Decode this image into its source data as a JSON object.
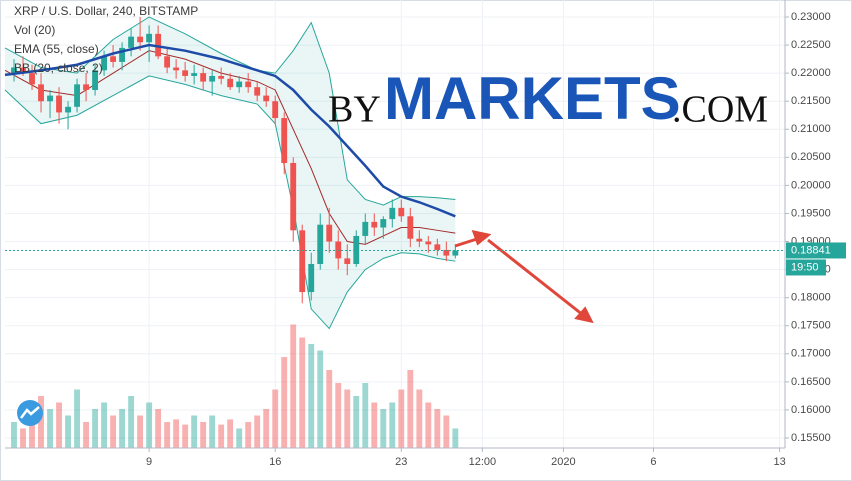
{
  "chart_data": {
    "type": "candlestick",
    "title": "XRP / U.S. Dollar, 240, BITSTAMP",
    "watermark": {
      "prefix": "BY",
      "main": "MARKETS",
      "suffix": ".COM"
    },
    "xlim": [
      1,
      44.3
    ],
    "ylim": [
      0.15322,
      0.23303
    ],
    "xticks": [
      9,
      16,
      23,
      {
        "value": 27.5,
        "label": "12:00"
      },
      {
        "value": 32,
        "label": "2020"
      },
      {
        "value": 37,
        "label": "6"
      },
      {
        "value": 44,
        "label": "13"
      }
    ],
    "yticks": [
      {
        "value": 0.155,
        "label": "0.15500"
      },
      {
        "value": 0.16,
        "label": "0.16000"
      },
      {
        "value": 0.165,
        "label": "0.16500"
      },
      {
        "value": 0.17,
        "label": "0.17000"
      },
      {
        "value": 0.175,
        "label": "0.17500"
      },
      {
        "value": 0.18,
        "label": "0.18000"
      },
      {
        "value": 0.185,
        "label": "0.18500"
      },
      {
        "value": 0.19,
        "label": "0.19000"
      },
      {
        "value": 0.195,
        "label": "0.19500"
      },
      {
        "value": 0.2,
        "label": "0.20000"
      },
      {
        "value": 0.205,
        "label": "0.20500"
      },
      {
        "value": 0.21,
        "label": "0.21000"
      },
      {
        "value": 0.215,
        "label": "0.21500"
      },
      {
        "value": 0.22,
        "label": "0.22000"
      },
      {
        "value": 0.225,
        "label": "0.22500"
      },
      {
        "value": 0.23,
        "label": "0.23000"
      }
    ],
    "grid": true,
    "up_color": "#26a69a",
    "down_color": "#ef5350",
    "last_price": 0.18841,
    "countdown": "19:50",
    "x": [
      1.5,
      2,
      2.5,
      3,
      3.5,
      4,
      4.5,
      5,
      5.5,
      6,
      6.5,
      7,
      7.5,
      8,
      8.5,
      9,
      9.5,
      10,
      10.5,
      11,
      11.5,
      12,
      12.5,
      13,
      13.5,
      14,
      14.5,
      15,
      15.5,
      16,
      16.5,
      17,
      17.5,
      18,
      18.5,
      19,
      19.5,
      20,
      20.5,
      21,
      21.5,
      22,
      22.5,
      23,
      23.5,
      24,
      24.5,
      25,
      25.5,
      26
    ],
    "open": [
      0.22,
      0.221,
      0.22,
      0.218,
      0.215,
      0.216,
      0.213,
      0.214,
      0.218,
      0.217,
      0.2205,
      0.223,
      0.222,
      0.2245,
      0.2265,
      0.2255,
      0.227,
      0.223,
      0.221,
      0.2205,
      0.2195,
      0.22,
      0.2185,
      0.2195,
      0.219,
      0.2175,
      0.2185,
      0.2175,
      0.216,
      0.215,
      0.212,
      0.204,
      0.192,
      0.181,
      0.186,
      0.193,
      0.19,
      0.187,
      0.186,
      0.191,
      0.1935,
      0.1925,
      0.194,
      0.196,
      0.1945,
      0.1905,
      0.19,
      0.1895,
      0.1885,
      0.1875
    ],
    "high": [
      0.2225,
      0.223,
      0.2215,
      0.22,
      0.217,
      0.2175,
      0.215,
      0.219,
      0.22,
      0.2215,
      0.224,
      0.225,
      0.2255,
      0.228,
      0.23,
      0.2285,
      0.2285,
      0.2245,
      0.2225,
      0.222,
      0.2215,
      0.221,
      0.2205,
      0.221,
      0.22,
      0.2195,
      0.22,
      0.2185,
      0.2175,
      0.216,
      0.213,
      0.205,
      0.193,
      0.188,
      0.195,
      0.196,
      0.192,
      0.1895,
      0.192,
      0.195,
      0.195,
      0.1945,
      0.1975,
      0.1975,
      0.196,
      0.192,
      0.191,
      0.1905,
      0.19,
      0.1895
    ],
    "low": [
      0.2185,
      0.2195,
      0.217,
      0.213,
      0.212,
      0.211,
      0.21,
      0.213,
      0.215,
      0.216,
      0.2195,
      0.221,
      0.2205,
      0.223,
      0.224,
      0.222,
      0.2225,
      0.22,
      0.219,
      0.2185,
      0.218,
      0.217,
      0.216,
      0.218,
      0.217,
      0.2165,
      0.2165,
      0.215,
      0.214,
      0.211,
      0.202,
      0.19,
      0.179,
      0.1795,
      0.185,
      0.188,
      0.185,
      0.184,
      0.1855,
      0.1895,
      0.191,
      0.1905,
      0.1925,
      0.1935,
      0.189,
      0.189,
      0.188,
      0.1875,
      0.1865,
      0.187
    ],
    "close": [
      0.221,
      0.22,
      0.218,
      0.215,
      0.216,
      0.213,
      0.214,
      0.218,
      0.217,
      0.2205,
      0.223,
      0.222,
      0.2245,
      0.2265,
      0.2255,
      0.227,
      0.223,
      0.221,
      0.2205,
      0.2195,
      0.22,
      0.2185,
      0.2195,
      0.219,
      0.2175,
      0.2185,
      0.2175,
      0.216,
      0.215,
      0.212,
      0.204,
      0.192,
      0.181,
      0.186,
      0.193,
      0.19,
      0.187,
      0.186,
      0.191,
      0.1935,
      0.1925,
      0.194,
      0.196,
      0.1945,
      0.1905,
      0.19,
      0.1895,
      0.1885,
      0.1875,
      0.18841
    ],
    "volume": {
      "name": "Vol (20)",
      "vlim": [
        0,
        100
      ],
      "values": [
        20,
        15,
        25,
        40,
        30,
        35,
        25,
        45,
        20,
        30,
        35,
        25,
        30,
        40,
        25,
        35,
        30,
        20,
        22,
        18,
        25,
        20,
        25,
        18,
        22,
        15,
        20,
        25,
        30,
        45,
        70,
        95,
        85,
        80,
        75,
        60,
        50,
        45,
        40,
        50,
        35,
        30,
        35,
        45,
        60,
        45,
        35,
        30,
        25,
        15
      ]
    },
    "series": [
      {
        "name": "EMA (55, close)",
        "color": "#1e4ba8",
        "x": [
          1,
          3,
          5,
          7,
          9,
          11,
          13,
          15,
          16,
          17,
          18,
          19,
          20,
          21,
          22,
          23,
          24,
          25,
          26
        ],
        "values": [
          0.2197,
          0.2205,
          0.2215,
          0.2235,
          0.225,
          0.224,
          0.2225,
          0.2205,
          0.2195,
          0.217,
          0.2135,
          0.2105,
          0.207,
          0.2035,
          0.1998,
          0.198,
          0.197,
          0.1958,
          0.1945
        ]
      }
    ],
    "bollinger": {
      "name": "BB (20, close, 2)",
      "band_color": "#26a69a",
      "basis_color": "#a52a2a",
      "x": [
        1,
        3,
        5,
        7,
        9,
        11,
        13,
        15,
        16,
        17,
        18,
        19,
        20,
        21,
        22,
        23,
        24,
        25,
        26
      ],
      "upper": [
        0.2245,
        0.221,
        0.22,
        0.226,
        0.23,
        0.227,
        0.2235,
        0.2205,
        0.22,
        0.224,
        0.229,
        0.22,
        0.201,
        0.1975,
        0.1965,
        0.198,
        0.198,
        0.1978,
        0.1975
      ],
      "basis": [
        0.2205,
        0.217,
        0.216,
        0.22,
        0.224,
        0.2225,
        0.22,
        0.2185,
        0.217,
        0.21,
        0.203,
        0.195,
        0.19,
        0.1895,
        0.191,
        0.1925,
        0.1925,
        0.192,
        0.1915
      ],
      "lower": [
        0.217,
        0.211,
        0.2125,
        0.216,
        0.2195,
        0.218,
        0.216,
        0.2145,
        0.211,
        0.196,
        0.178,
        0.1745,
        0.181,
        0.185,
        0.187,
        0.188,
        0.1878,
        0.187,
        0.1865
      ]
    }
  }
}
